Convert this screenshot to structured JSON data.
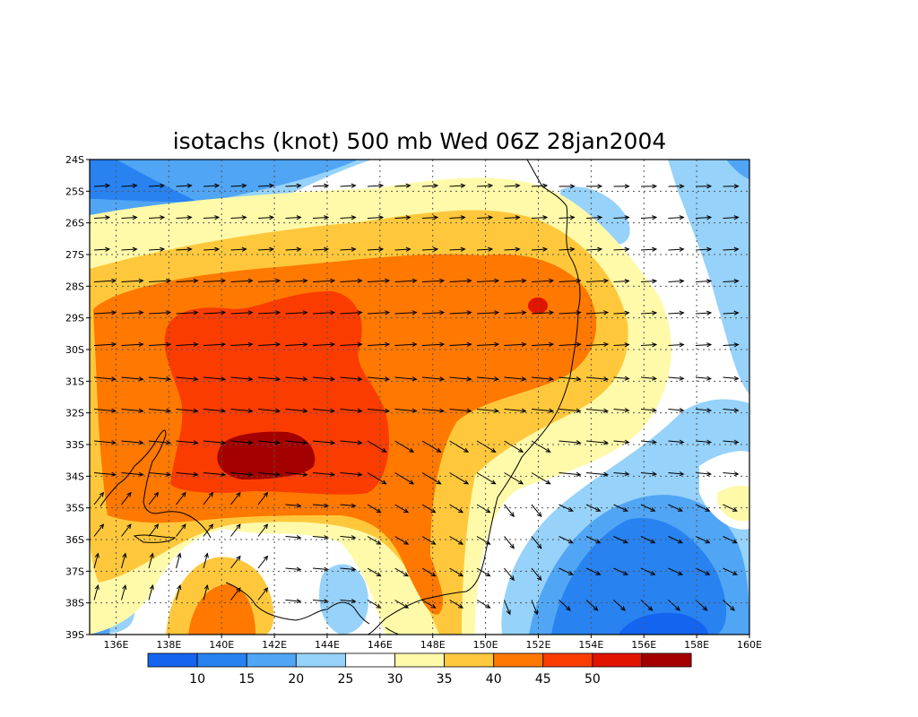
{
  "title": "isotachs (knot) 500 mb Wed 06Z 28jan2004",
  "map": {
    "lon_range": [
      135,
      160
    ],
    "lat_range": [
      -39,
      -24
    ],
    "x_ticks": [
      "136E",
      "138E",
      "140E",
      "142E",
      "144E",
      "146E",
      "148E",
      "150E",
      "152E",
      "154E",
      "156E",
      "158E",
      "160E"
    ],
    "y_ticks": [
      "24S",
      "25S",
      "26S",
      "27S",
      "28S",
      "29S",
      "30S",
      "31S",
      "32S",
      "33S",
      "34S",
      "35S",
      "36S",
      "37S",
      "38S",
      "39S"
    ],
    "grid": "dotted"
  },
  "colorbar": {
    "colors": [
      "#1464f0",
      "#2882f0",
      "#50a5f5",
      "#96d2fa",
      "#ffffff",
      "#fffaaa",
      "#ffc83c",
      "#ff7800",
      "#fa3c00",
      "#e11400",
      "#a50000"
    ],
    "labels": [
      "10",
      "15",
      "20",
      "25",
      "30",
      "35",
      "40",
      "45",
      "50"
    ]
  },
  "chart_data": {
    "type": "heatmap",
    "title": "isotachs (knot) 500 mb Wed 06Z 28jan2004",
    "levels": [
      10,
      15,
      20,
      25,
      30,
      35,
      40,
      45,
      50
    ],
    "units": "knot",
    "pressure_level": "500 mb",
    "valid_time": "Wed 06Z 28jan2004",
    "xlim": [
      135,
      160
    ],
    "ylim": [
      -39,
      -24
    ],
    "features": [
      {
        "kind": "max",
        "speed_range": [
          50,
          55
        ],
        "lon": 141.7,
        "lat": -33.5
      },
      {
        "kind": "max",
        "speed_range": [
          45,
          50
        ],
        "lon": 152.2,
        "lat": -28.6
      },
      {
        "kind": "min",
        "speed_range": [
          10,
          15
        ],
        "lon": 156,
        "lat": -36.5
      }
    ]
  }
}
